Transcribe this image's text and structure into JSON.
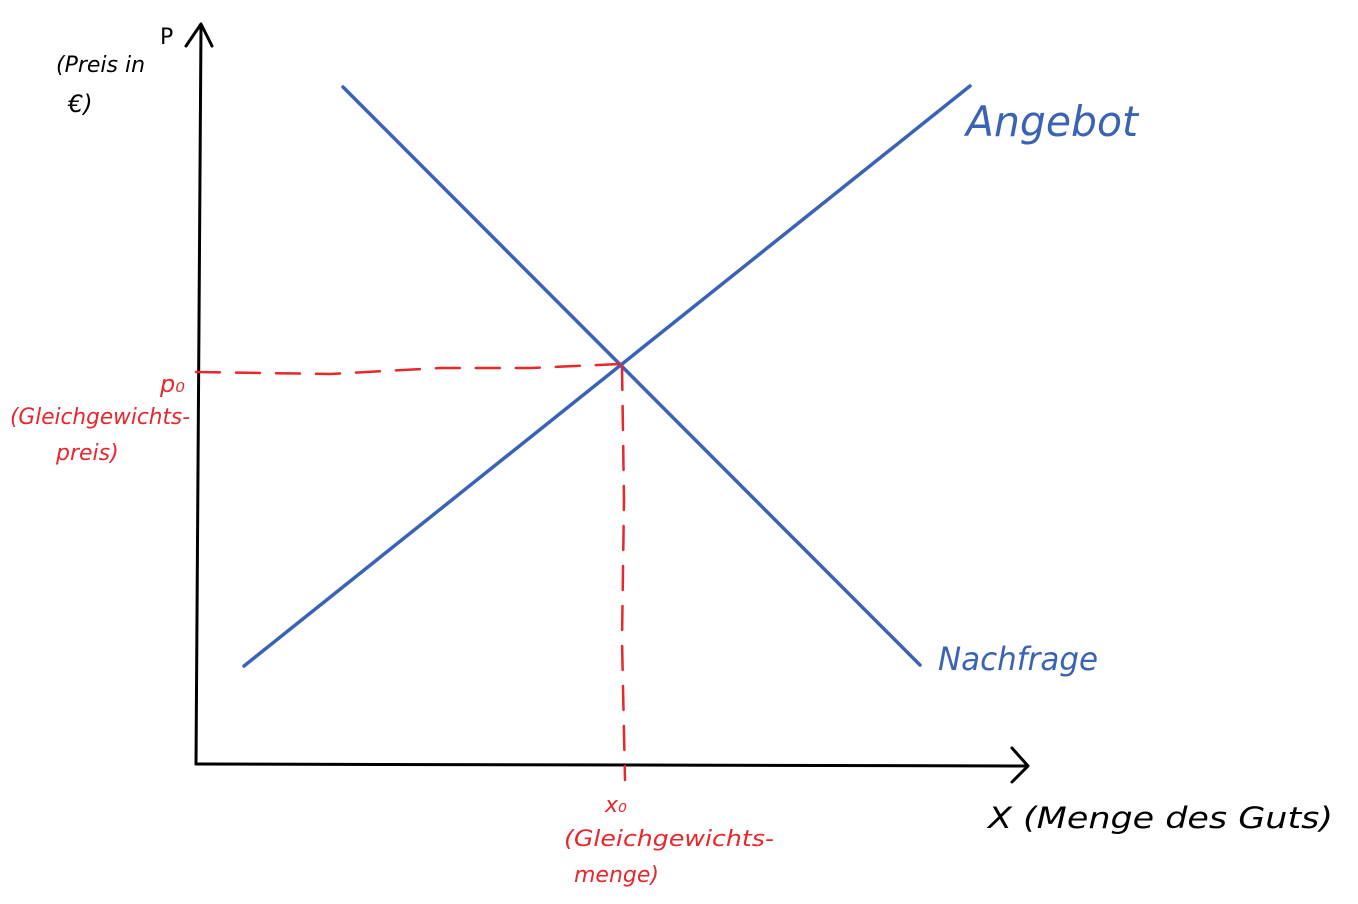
{
  "y_axis": {
    "symbol": "P",
    "label_line1": "(Preis in",
    "label_line2": "€)"
  },
  "x_axis": {
    "label": "X (Menge des Guts)"
  },
  "curves": {
    "supply_label": "Angebot",
    "demand_label": "Nachfrage"
  },
  "equilibrium": {
    "price_symbol": "p₀",
    "price_caption_line1": "(Gleichgewichts-",
    "price_caption_line2": "preis)",
    "quantity_symbol": "x₀",
    "quantity_caption_line1": "(Gleichgewichts-",
    "quantity_caption_line2": "menge)"
  },
  "colors": {
    "axis": "#000000",
    "curve": "#3b63b5",
    "equilibrium": "#e8262b",
    "background": "#ffffff"
  }
}
